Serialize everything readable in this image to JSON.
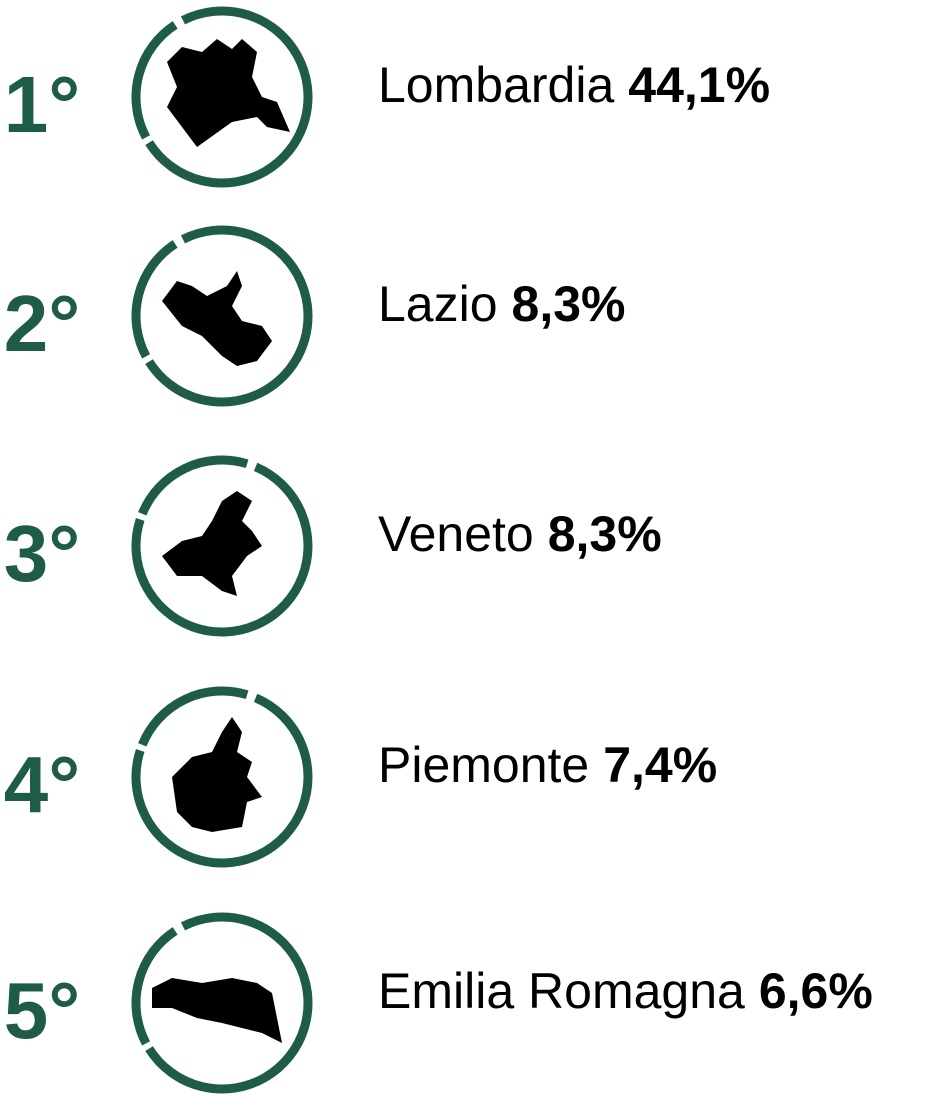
{
  "items": [
    {
      "rank": "1°",
      "name": "Lombardia",
      "value": "44,1%"
    },
    {
      "rank": "2°",
      "name": "Lazio",
      "value": "8,3%"
    },
    {
      "rank": "3°",
      "name": "Veneto",
      "value": "8,3%"
    },
    {
      "rank": "4°",
      "name": "Piemonte",
      "value": "7,4%"
    },
    {
      "rank": "5°",
      "name": "Emilia Romagna",
      "value": "6,6%"
    }
  ]
}
